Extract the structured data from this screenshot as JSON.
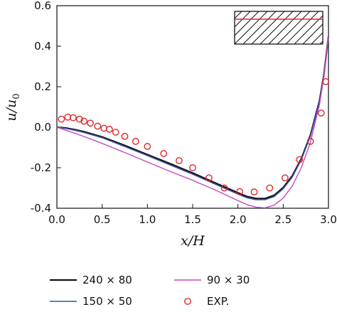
{
  "chart_data": {
    "type": "line",
    "xlabel": "x/H",
    "ylabel": "u/u0",
    "xlim": [
      0,
      3.0
    ],
    "ylim": [
      -0.4,
      0.6
    ],
    "xticks": [
      "0.0",
      "0.5",
      "1.0",
      "1.5",
      "2.0",
      "2.5",
      "3.0"
    ],
    "yticks": [
      "-0.4",
      "-0.2",
      "0.0",
      "0.2",
      "0.4",
      "0.6"
    ],
    "grid": false,
    "legend_position": "bottom",
    "series": [
      {
        "name": "240 × 80",
        "kind": "line",
        "color": "#111111",
        "x": [
          0,
          0.1,
          0.2,
          0.3,
          0.5,
          0.75,
          1.0,
          1.25,
          1.5,
          1.75,
          2.0,
          2.1,
          2.2,
          2.3,
          2.4,
          2.5,
          2.6,
          2.7,
          2.8,
          2.9,
          2.95,
          3.0
        ],
        "y": [
          0,
          -0.004,
          -0.012,
          -0.022,
          -0.048,
          -0.09,
          -0.135,
          -0.18,
          -0.226,
          -0.275,
          -0.324,
          -0.342,
          -0.352,
          -0.352,
          -0.336,
          -0.298,
          -0.24,
          -0.155,
          -0.04,
          0.13,
          0.26,
          0.45
        ]
      },
      {
        "name": "150 × 50",
        "kind": "line",
        "color": "#3b4fa0",
        "x": [
          0,
          0.1,
          0.2,
          0.3,
          0.5,
          0.75,
          1.0,
          1.25,
          1.5,
          1.75,
          2.0,
          2.1,
          2.2,
          2.3,
          2.4,
          2.5,
          2.6,
          2.7,
          2.8,
          2.9,
          2.95,
          3.0
        ],
        "y": [
          0,
          -0.006,
          -0.015,
          -0.026,
          -0.052,
          -0.095,
          -0.14,
          -0.186,
          -0.232,
          -0.281,
          -0.33,
          -0.348,
          -0.358,
          -0.358,
          -0.342,
          -0.304,
          -0.246,
          -0.16,
          -0.044,
          0.127,
          0.258,
          0.45
        ]
      },
      {
        "name": "90 × 30",
        "kind": "line",
        "color": "#c04bc0",
        "x": [
          0,
          0.1,
          0.2,
          0.3,
          0.5,
          0.75,
          1.0,
          1.25,
          1.5,
          1.75,
          2.0,
          2.1,
          2.2,
          2.3,
          2.4,
          2.5,
          2.6,
          2.7,
          2.8,
          2.9,
          2.95,
          3.0
        ],
        "y": [
          0,
          -0.015,
          -0.03,
          -0.046,
          -0.08,
          -0.125,
          -0.172,
          -0.218,
          -0.262,
          -0.31,
          -0.362,
          -0.382,
          -0.395,
          -0.398,
          -0.385,
          -0.35,
          -0.29,
          -0.2,
          -0.075,
          0.11,
          0.25,
          0.45
        ]
      },
      {
        "name": "EXP.",
        "kind": "markers",
        "color": "#e0262a",
        "x": [
          0.05,
          0.12,
          0.18,
          0.25,
          0.3,
          0.37,
          0.45,
          0.52,
          0.58,
          0.65,
          0.75,
          0.87,
          1.0,
          1.18,
          1.35,
          1.5,
          1.68,
          1.85,
          2.02,
          2.18,
          2.35,
          2.52,
          2.68,
          2.8,
          2.92,
          2.97
        ],
        "y": [
          0.04,
          0.05,
          0.047,
          0.04,
          0.03,
          0.02,
          0.005,
          -0.005,
          -0.01,
          -0.025,
          -0.045,
          -0.07,
          -0.095,
          -0.13,
          -0.165,
          -0.2,
          -0.25,
          -0.3,
          -0.318,
          -0.32,
          -0.3,
          -0.25,
          -0.16,
          -0.07,
          0.07,
          0.225
        ]
      }
    ]
  }
}
